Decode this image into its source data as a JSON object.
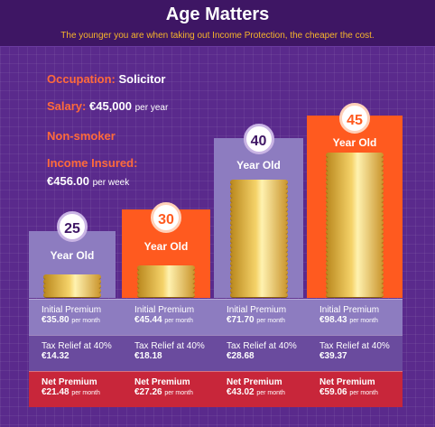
{
  "header": {
    "title": "Age Matters",
    "subtitle": "The younger you are when taking out Income Protection, the cheaper the cost."
  },
  "profile": {
    "occupation_label": "Occupation:",
    "occupation_value": "Solicitor",
    "salary_label": "Salary:",
    "salary_value": "€45,000",
    "salary_unit": "per year",
    "smoker": "Non-smoker",
    "income_label": "Income Insured:",
    "income_value": "€456.00",
    "income_unit": "per week"
  },
  "colors": {
    "purple": "#8d7cc0",
    "orange": "#ff5a1f",
    "red": "#c8263a",
    "gold": "#f5d36a"
  },
  "columns": [
    {
      "age": "25",
      "label": "Year Old",
      "initial_label": "Initial Premium",
      "initial": "€35.80",
      "tax_label": "Tax Relief at 40%",
      "tax": "€14.32",
      "net_label": "Net Premium",
      "net": "€21.48",
      "unit": "per month"
    },
    {
      "age": "30",
      "label": "Year Old",
      "initial_label": "Initial Premium",
      "initial": "€45.44",
      "tax_label": "Tax Relief at 40%",
      "tax": "€18.18",
      "net_label": "Net Premium",
      "net": "€27.26",
      "unit": "per month"
    },
    {
      "age": "40",
      "label": "Year Old",
      "initial_label": "Initial Premium",
      "initial": "€71.70",
      "tax_label": "Tax Relief at 40%",
      "tax": "€28.68",
      "net_label": "Net Premium",
      "net": "€43.02",
      "unit": "per month"
    },
    {
      "age": "45",
      "label": "Year Old",
      "initial_label": "Initial Premium",
      "initial": "€98.43",
      "tax_label": "Tax Relief at 40%",
      "tax": "€39.37",
      "net_label": "Net Premium",
      "net": "€59.06",
      "unit": "per month"
    }
  ]
}
